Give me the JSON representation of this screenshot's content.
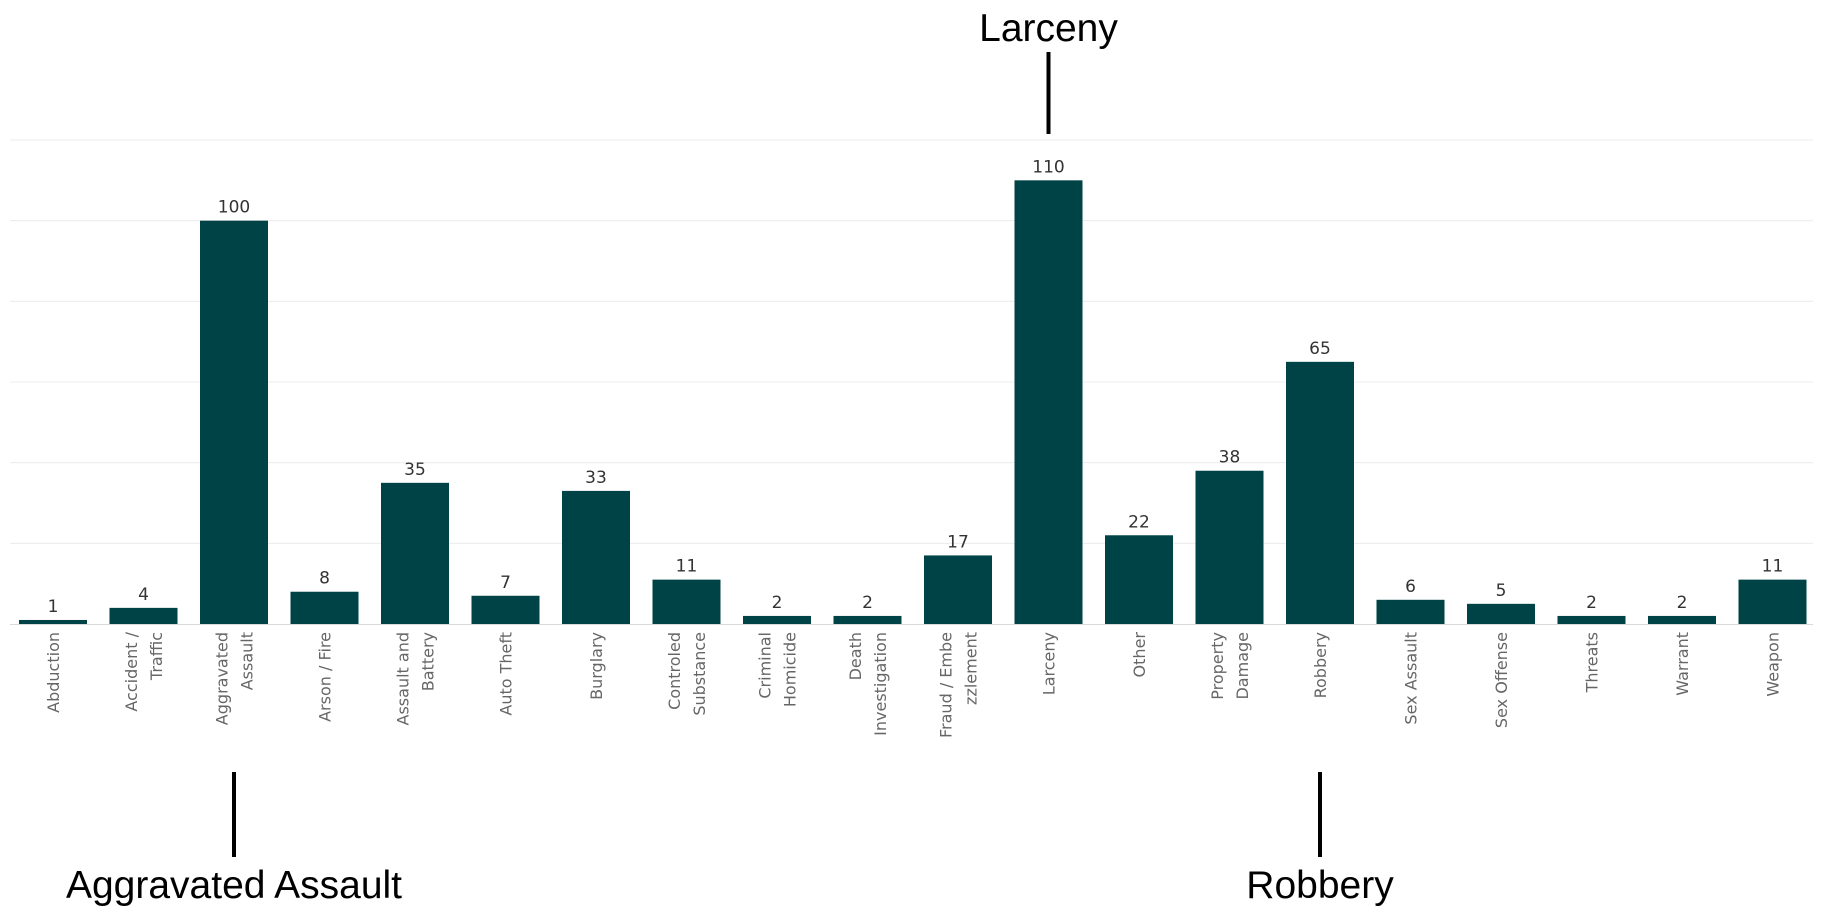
{
  "chart_data": {
    "type": "bar",
    "categories": [
      [
        "Abduction"
      ],
      [
        "Accident /",
        "Traffic"
      ],
      [
        "Aggravated",
        "Assault"
      ],
      [
        "Arson / Fire"
      ],
      [
        "Assault and",
        "Battery"
      ],
      [
        "Auto Theft"
      ],
      [
        "Burglary"
      ],
      [
        "Controled",
        "Substance"
      ],
      [
        "Criminal",
        "Homicide"
      ],
      [
        "Death",
        "Investigation"
      ],
      [
        "Fraud / Embe",
        "zzlement"
      ],
      [
        "Larceny"
      ],
      [
        "Other"
      ],
      [
        "Property",
        "Damage"
      ],
      [
        "Robbery"
      ],
      [
        "Sex Assault"
      ],
      [
        "Sex Offense"
      ],
      [
        "Threats"
      ],
      [
        "Warrant"
      ],
      [
        "Weapon"
      ]
    ],
    "values": [
      1,
      4,
      100,
      8,
      35,
      7,
      33,
      11,
      2,
      2,
      17,
      110,
      22,
      38,
      65,
      6,
      5,
      2,
      2,
      11
    ],
    "ylim": [
      0,
      120
    ],
    "grid": true,
    "bar_color": "#004346",
    "annotations": [
      {
        "text": "Larceny",
        "category_index": 11,
        "side": "top"
      },
      {
        "text": "Aggravated Assault",
        "category_index": 2,
        "side": "bottom"
      },
      {
        "text": "Robbery",
        "category_index": 14,
        "side": "bottom"
      }
    ]
  }
}
